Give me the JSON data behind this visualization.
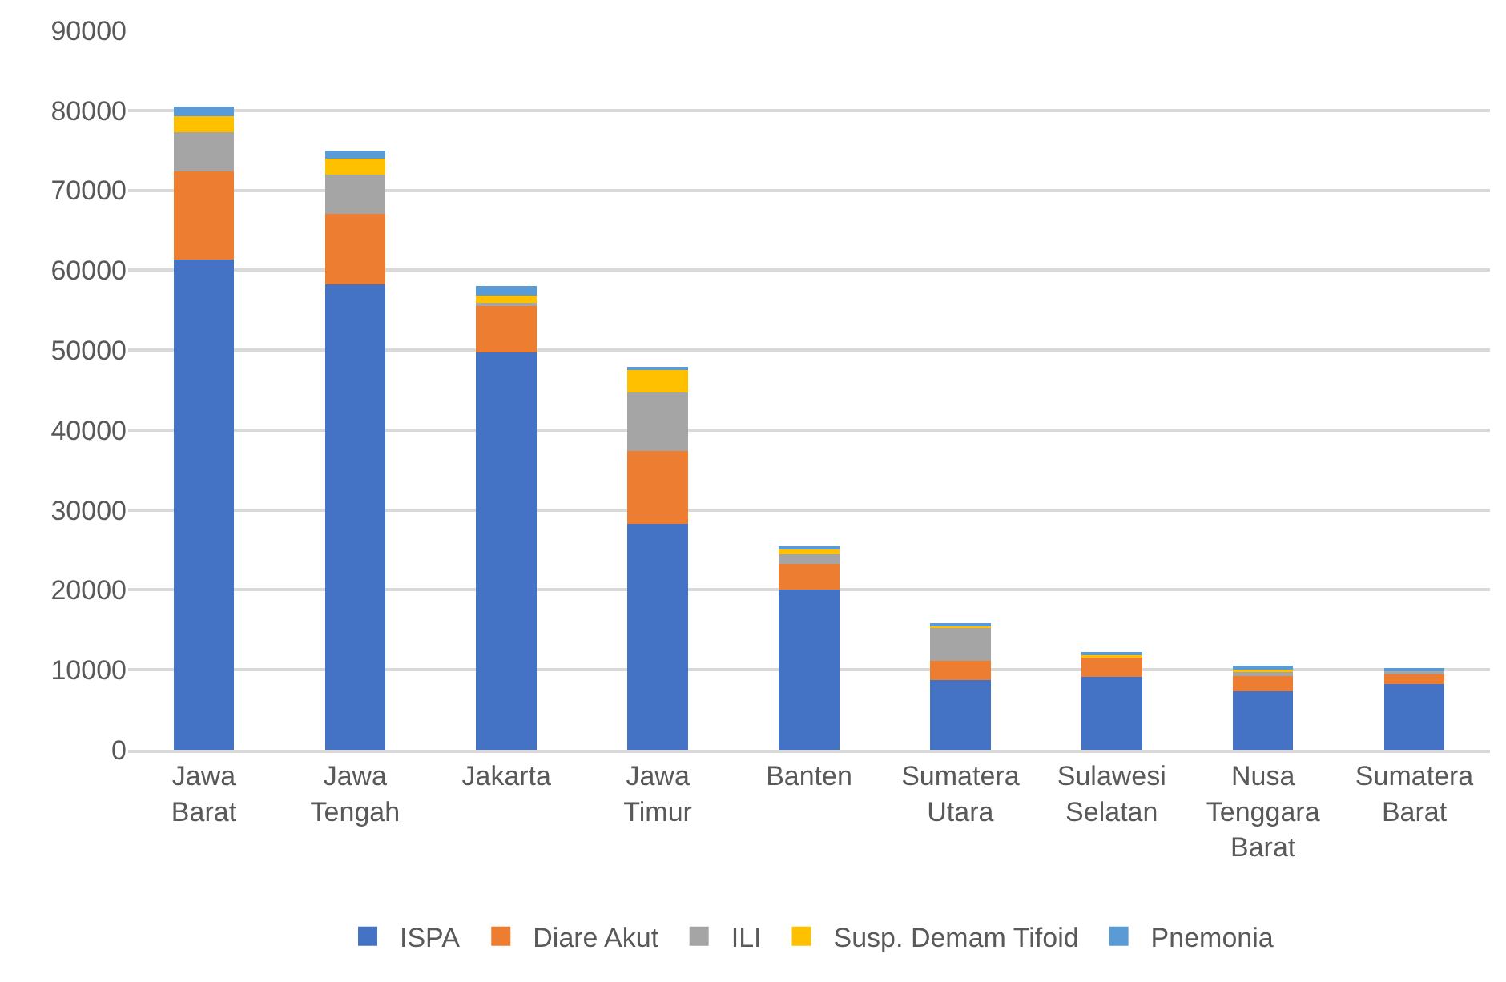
{
  "chart_data": {
    "type": "bar",
    "stacked": true,
    "categories": [
      "Jawa Barat",
      "Jawa Tengah",
      "Jakarta",
      "Jawa Timur",
      "Banten",
      "Sumatera Utara",
      "Sulawesi Selatan",
      "Nusa Tenggara Barat",
      "Sumatera Barat"
    ],
    "series": [
      {
        "name": "ISPA",
        "color": "#4472c4",
        "values": [
          61300,
          58200,
          49700,
          28300,
          20000,
          8700,
          9100,
          7300,
          8200
        ]
      },
      {
        "name": "Diare Akut",
        "color": "#ed7d31",
        "values": [
          11100,
          8800,
          5900,
          9100,
          3300,
          2400,
          2400,
          1900,
          1400
        ]
      },
      {
        "name": "ILI",
        "color": "#a5a5a5",
        "values": [
          4900,
          5000,
          300,
          7300,
          1200,
          4300,
          null,
          500,
          300
        ]
      },
      {
        "name": "Susp. Demam Tifoid",
        "color": "#ffc000",
        "values": [
          2000,
          2000,
          900,
          2800,
          600,
          100,
          400,
          500,
          100
        ]
      },
      {
        "name": "Pnemonia",
        "color": "#5b9bd5",
        "values": [
          1200,
          1000,
          1200,
          400,
          400,
          200,
          300,
          300,
          200
        ]
      }
    ],
    "ylim": [
      0,
      90000
    ],
    "yticks": [
      0,
      10000,
      20000,
      30000,
      40000,
      50000,
      60000,
      70000,
      80000,
      90000
    ],
    "grid": "y",
    "legend": "bottom"
  }
}
